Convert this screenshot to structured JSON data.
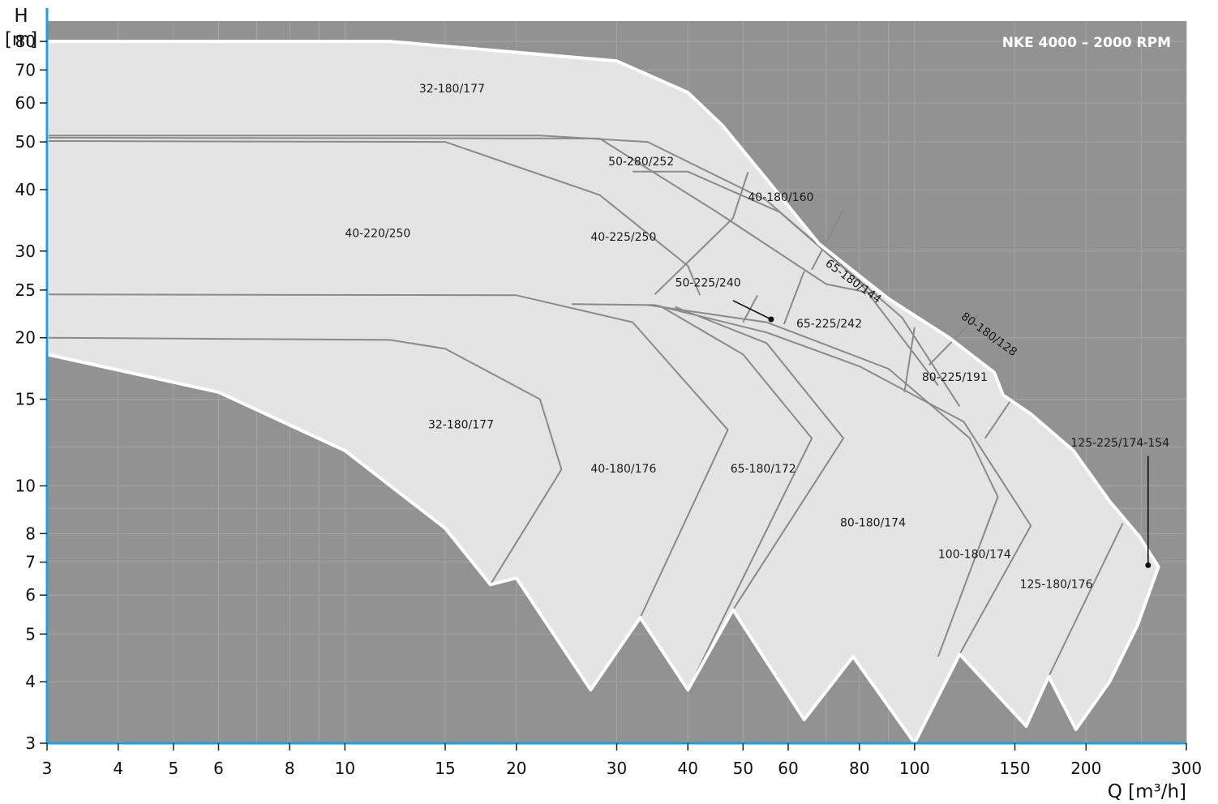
{
  "chart_data": {
    "type": "area",
    "title": "NKE 4000 – 2000 RPM",
    "xlabel": "Q [m³/h]",
    "ylabel_line1": "H",
    "ylabel_line2": "[m]",
    "x_scale": "log",
    "y_scale": "log",
    "xlim": [
      3,
      300
    ],
    "ylim": [
      3,
      90
    ],
    "x_ticks": [
      3,
      4,
      5,
      6,
      8,
      10,
      15,
      20,
      30,
      40,
      50,
      60,
      80,
      100,
      150,
      200,
      300
    ],
    "x_tick_labels": [
      "3",
      "4",
      "5",
      "6",
      "8",
      "10",
      "15",
      "20",
      "30",
      "40",
      "50",
      "60",
      "80",
      "100",
      "150",
      "200",
      "300"
    ],
    "y_ticks": [
      3,
      4,
      5,
      6,
      7,
      8,
      10,
      15,
      20,
      25,
      30,
      40,
      50,
      60,
      70,
      80
    ],
    "y_tick_labels": [
      "3",
      "4",
      "5",
      "6",
      "7",
      "8",
      "10",
      "15",
      "20",
      "25",
      "30",
      "40",
      "50",
      "60",
      "70",
      "80"
    ],
    "grid": true,
    "colors": {
      "plot_background": "#929292",
      "region_fill": "#e4e4e4",
      "envelope_line": "#ffffff",
      "divider_line": "#8a8a8a",
      "axis": "#1ea0dc",
      "grid": "#a4a4a4"
    },
    "envelope": [
      [
        3,
        80
      ],
      [
        12,
        80
      ],
      [
        30,
        73
      ],
      [
        40,
        63
      ],
      [
        46,
        54
      ],
      [
        55,
        42
      ],
      [
        68,
        31
      ],
      [
        90,
        24
      ],
      [
        115,
        20
      ],
      [
        138,
        17
      ],
      [
        143,
        15.3
      ],
      [
        160,
        14
      ],
      [
        190,
        11.8
      ],
      [
        220,
        9.3
      ],
      [
        248,
        7.9
      ],
      [
        268,
        6.85
      ],
      [
        246,
        5.2
      ],
      [
        220,
        4.0
      ],
      [
        192,
        3.2
      ],
      [
        172,
        4.1
      ],
      [
        157,
        3.25
      ],
      [
        120,
        4.55
      ],
      [
        100,
        3.0
      ],
      [
        78,
        4.5
      ],
      [
        64,
        3.35
      ],
      [
        48,
        5.6
      ],
      [
        40,
        3.85
      ],
      [
        33,
        5.4
      ],
      [
        27,
        3.85
      ],
      [
        20,
        6.5
      ],
      [
        18,
        6.3
      ],
      [
        15,
        8.2
      ],
      [
        10,
        11.8
      ],
      [
        6,
        15.5
      ],
      [
        3,
        18.5
      ]
    ],
    "dividers": [
      [
        [
          3,
          51.5
        ],
        [
          22,
          51.5
        ],
        [
          34,
          50
        ],
        [
          55,
          38
        ],
        [
          95,
          22
        ],
        [
          120,
          14.5
        ]
      ],
      [
        [
          3,
          51
        ],
        [
          28,
          50.8
        ],
        [
          45,
          36
        ],
        [
          70,
          25.7
        ],
        [
          86,
          24.5
        ]
      ],
      [
        [
          3,
          50.2
        ],
        [
          15,
          50
        ],
        [
          28,
          39
        ],
        [
          40,
          28
        ],
        [
          42,
          24.4
        ]
      ],
      [
        [
          32,
          43.5
        ],
        [
          40,
          43.5
        ],
        [
          58,
          36
        ],
        [
          80,
          26
        ],
        [
          110,
          16
        ]
      ],
      [
        [
          51,
          43.4
        ],
        [
          48,
          35
        ],
        [
          35,
          24.5
        ]
      ],
      [
        [
          53,
          24.4
        ],
        [
          50,
          21.5
        ]
      ],
      [
        [
          64,
          27.3
        ],
        [
          59,
          21.3
        ]
      ],
      [
        [
          75,
          36.5
        ],
        [
          66,
          27.5
        ]
      ],
      [
        [
          100,
          21
        ],
        [
          96,
          15.5
        ]
      ],
      [
        [
          130,
          22.4
        ],
        [
          106,
          17.6
        ]
      ],
      [
        [
          148,
          15
        ],
        [
          133,
          12.5
        ]
      ],
      [
        [
          3,
          24.5
        ],
        [
          20,
          24.4
        ],
        [
          32,
          21.5
        ],
        [
          47,
          13
        ],
        [
          33,
          5.4
        ]
      ],
      [
        [
          25,
          23.4
        ],
        [
          35,
          23.3
        ],
        [
          55,
          20.5
        ],
        [
          80,
          17.5
        ],
        [
          122,
          13.5
        ],
        [
          160,
          8.3
        ],
        [
          120,
          4.55
        ]
      ],
      [
        [
          34,
          23.3
        ],
        [
          55,
          21.5
        ],
        [
          90,
          17.3
        ],
        [
          125,
          12.5
        ],
        [
          140,
          9.5
        ],
        [
          110,
          4.5
        ]
      ],
      [
        [
          38,
          23.1
        ],
        [
          55,
          19.5
        ],
        [
          75,
          12.5
        ],
        [
          48,
          5.6
        ]
      ],
      [
        [
          36,
          23.1
        ],
        [
          50,
          18.5
        ],
        [
          66,
          12.5
        ],
        [
          40,
          3.85
        ]
      ],
      [
        [
          3,
          20
        ],
        [
          12,
          19.8
        ],
        [
          15,
          19
        ],
        [
          22,
          15
        ],
        [
          24,
          10.8
        ],
        [
          18,
          6.3
        ]
      ],
      [
        [
          232,
          8.4
        ],
        [
          172,
          4.1
        ]
      ]
    ],
    "labels": [
      {
        "text": "32-180/177",
        "x": 13.5,
        "y": 64,
        "anchor": "start"
      },
      {
        "text": "50-280/252",
        "x": 29,
        "y": 45.5,
        "anchor": "start"
      },
      {
        "text": "40-180/160",
        "x": 51,
        "y": 38.5,
        "anchor": "start"
      },
      {
        "text": "40-225/250",
        "x": 27,
        "y": 32,
        "anchor": "start"
      },
      {
        "text": "40-220/250",
        "x": 10,
        "y": 32.5,
        "anchor": "start"
      },
      {
        "text": "65-180/144",
        "x": 78,
        "y": 26,
        "anchor": "middle",
        "rotate": 36
      },
      {
        "text": "50-225/240",
        "x": 38,
        "y": 25.8,
        "anchor": "start"
      },
      {
        "text": "65-225/242",
        "x": 62,
        "y": 21.3,
        "anchor": "start"
      },
      {
        "text": "80-180/128",
        "x": 135,
        "y": 20.3,
        "anchor": "middle",
        "rotate": 36
      },
      {
        "text": "80-225/191",
        "x": 103,
        "y": 16.6,
        "anchor": "start"
      },
      {
        "text": "32-180/177",
        "x": 14,
        "y": 13.3,
        "anchor": "start"
      },
      {
        "text": "125-225/174-154",
        "x": 188,
        "y": 12.2,
        "anchor": "start"
      },
      {
        "text": "40-180/176",
        "x": 27,
        "y": 10.8,
        "anchor": "start"
      },
      {
        "text": "65-180/172",
        "x": 47.5,
        "y": 10.8,
        "anchor": "start"
      },
      {
        "text": "80-180/174",
        "x": 74,
        "y": 8.4,
        "anchor": "start"
      },
      {
        "text": "100-180/174",
        "x": 110,
        "y": 7.25,
        "anchor": "start"
      },
      {
        "text": "125-180/176",
        "x": 153,
        "y": 6.3,
        "anchor": "start"
      }
    ],
    "leaders": [
      {
        "from": [
          48,
          23.8
        ],
        "to": [
          56,
          21.8
        ]
      },
      {
        "from": [
          257,
          11.5
        ],
        "to": [
          257,
          6.9
        ]
      }
    ]
  }
}
